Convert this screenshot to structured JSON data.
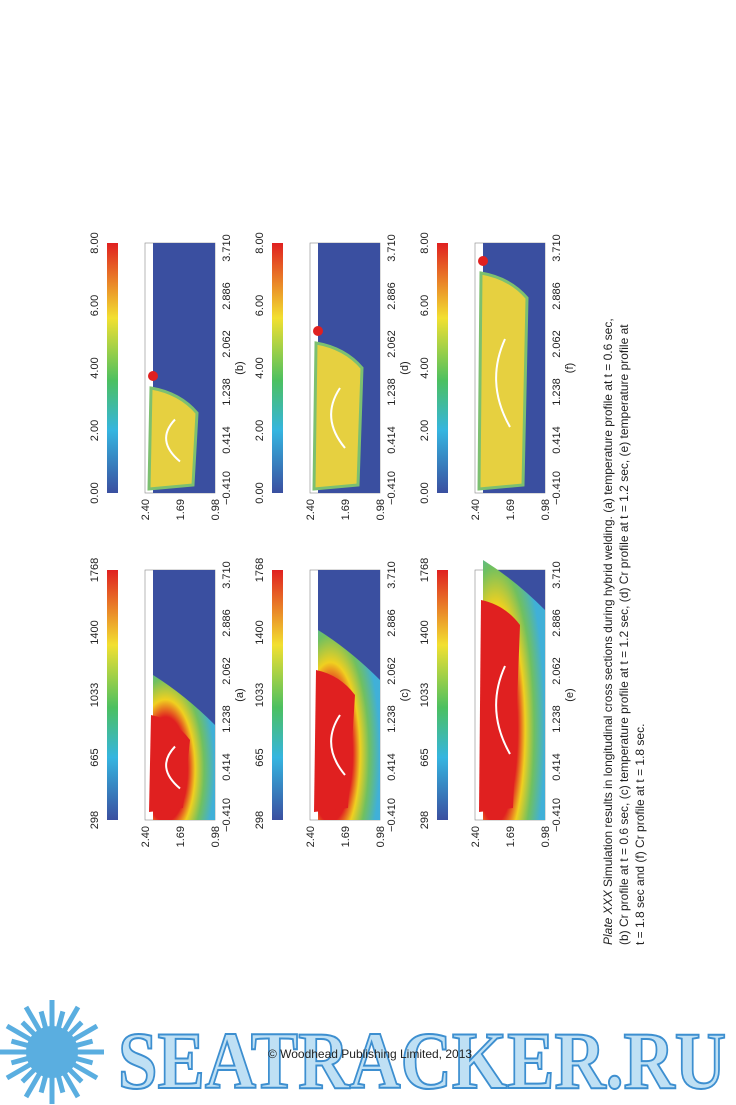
{
  "panels": [
    {
      "label": "(a)",
      "colorbar_ticks": [
        "298",
        "665",
        "1033",
        "1400",
        "1768"
      ],
      "y_ticks": [
        "2.40",
        "1.69",
        "0.98"
      ],
      "x_ticks": [
        "−0.410",
        "0.414",
        "1.238",
        "2.062",
        "2.886",
        "3.710"
      ]
    },
    {
      "label": "(b)",
      "colorbar_ticks": [
        "0.00",
        "2.00",
        "4.00",
        "6.00",
        "8.00"
      ],
      "y_ticks": [
        "2.40",
        "1.69",
        "0.98"
      ],
      "x_ticks": [
        "−0.410",
        "0.414",
        "1.238",
        "2.062",
        "2.886",
        "3.710"
      ]
    },
    {
      "label": "(c)",
      "colorbar_ticks": [
        "298",
        "665",
        "1033",
        "1400",
        "1768"
      ],
      "y_ticks": [
        "2.40",
        "1.69",
        "0.98"
      ],
      "x_ticks": [
        "−0.410",
        "0.414",
        "1.238",
        "2.062",
        "2.886",
        "3.710"
      ]
    },
    {
      "label": "(d)",
      "colorbar_ticks": [
        "0.00",
        "2.00",
        "4.00",
        "6.00",
        "8.00"
      ],
      "y_ticks": [
        "2.40",
        "1.69",
        "0.98"
      ],
      "x_ticks": [
        "−0.410",
        "0.414",
        "1.238",
        "2.062",
        "2.886",
        "3.710"
      ]
    },
    {
      "label": "(e)",
      "colorbar_ticks": [
        "298",
        "665",
        "1033",
        "1400",
        "1768"
      ],
      "y_ticks": [
        "2.40",
        "1.69",
        "0.98"
      ],
      "x_ticks": [
        "−0.410",
        "0.414",
        "1.238",
        "2.062",
        "2.886",
        "3.710"
      ]
    },
    {
      "label": "(f)",
      "colorbar_ticks": [
        "0.00",
        "2.00",
        "4.00",
        "6.00",
        "8.00"
      ],
      "y_ticks": [
        "2.40",
        "1.69",
        "0.98"
      ],
      "x_ticks": [
        "−0.410",
        "0.414",
        "1.238",
        "2.062",
        "2.886",
        "3.710"
      ]
    }
  ],
  "caption": {
    "label": "Plate XXX",
    "lines": [
      " Simulation results in longitudinal cross sections during hybrid welding. (a) temperature profile at t = 0.6 sec,",
      "(b) Cr profile at t = 0.6 sec, (c) temperature profile at t = 1.2 sec, (d) Cr profile at t = 1.2 sec, (e) temperature profile at",
      "t = 1.8 sec and (f) Cr profile at t = 1.8 sec."
    ]
  },
  "footer": {
    "copyright": "© Woodhead Publishing Limited, 2013"
  },
  "watermark": {
    "text": "SEATRACKER.RU"
  }
}
